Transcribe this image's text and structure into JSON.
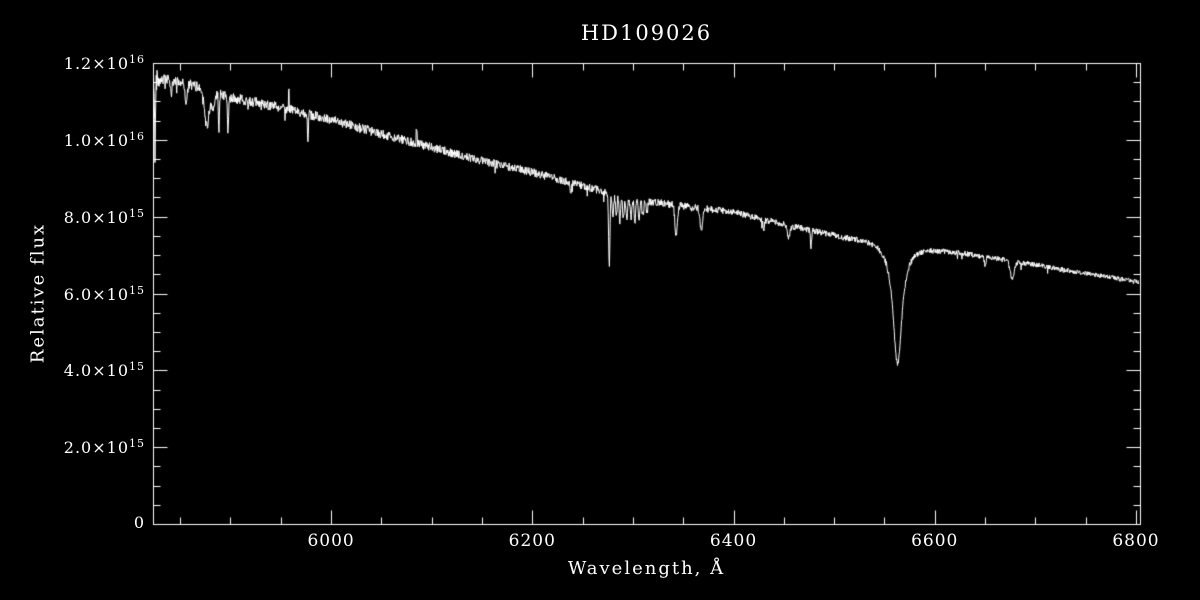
{
  "chart_data": {
    "type": "line",
    "kind": "astronomical-spectrum",
    "title": "HD109026",
    "colors": {
      "background": "#000000",
      "foreground": "#ffffff",
      "trace": "#ffffff"
    },
    "x_axis": {
      "label": "Wavelength, Å",
      "range": [
        5823,
        6804
      ],
      "major_ticks": [
        6000,
        6200,
        6400,
        6600,
        6800
      ],
      "tick_labels": [
        "6000",
        "6200",
        "6400",
        "6600",
        "6800"
      ],
      "minor_tick_step": 50
    },
    "y_axis": {
      "label": "Relative flux",
      "units": "1e15",
      "range_1e15": [
        0,
        12
      ],
      "major_ticks_1e15": [
        0,
        2,
        4,
        6,
        8,
        10,
        12
      ],
      "tick_labels": [
        "0",
        "2.0×10^15",
        "4.0×10^15",
        "6.0×10^15",
        "8.0×10^15",
        "1.0×10^16",
        "1.2×10^16"
      ],
      "minor_tick_step_1e15": 0.5
    },
    "continuum_anchors_wavelength_flux1e15": [
      [
        5823,
        11.62
      ],
      [
        5850,
        11.5
      ],
      [
        5880,
        11.3
      ],
      [
        5900,
        11.1
      ],
      [
        5950,
        10.85
      ],
      [
        6000,
        10.52
      ],
      [
        6050,
        10.15
      ],
      [
        6100,
        9.8
      ],
      [
        6150,
        9.45
      ],
      [
        6200,
        9.16
      ],
      [
        6250,
        8.8
      ],
      [
        6300,
        8.45
      ],
      [
        6350,
        8.28
      ],
      [
        6400,
        8.12
      ],
      [
        6450,
        7.8
      ],
      [
        6500,
        7.52
      ],
      [
        6550,
        7.38
      ],
      [
        6600,
        7.18
      ],
      [
        6650,
        6.95
      ],
      [
        6700,
        6.75
      ],
      [
        6750,
        6.52
      ],
      [
        6804,
        6.3
      ]
    ],
    "absorption_lines": [
      {
        "center": 5825.0,
        "depth_1e15": 2.05,
        "width_A": 0.6,
        "profile": "gauss"
      },
      {
        "center": 5841.0,
        "depth_1e15": 0.35,
        "width_A": 1.2,
        "profile": "gauss"
      },
      {
        "center": 5856.0,
        "depth_1e15": 0.5,
        "width_A": 1.5,
        "profile": "gauss"
      },
      {
        "center": 5876.5,
        "depth_1e15": 0.95,
        "width_A": 3.5,
        "profile": "gauss"
      },
      {
        "center": 5883.0,
        "depth_1e15": 0.5,
        "width_A": 2.5,
        "profile": "gauss"
      },
      {
        "center": 5888.5,
        "depth_1e15": 1.1,
        "width_A": 0.7,
        "profile": "gauss"
      },
      {
        "center": 5897.5,
        "depth_1e15": 1.05,
        "width_A": 0.7,
        "profile": "gauss"
      },
      {
        "center": 6238.0,
        "depth_1e15": 0.3,
        "width_A": 1.0,
        "profile": "gauss"
      },
      {
        "center": 6276.5,
        "depth_1e15": 2.0,
        "width_A": 0.9,
        "profile": "gauss"
      },
      {
        "center": 6280.0,
        "depth_1e15": 0.6,
        "width_A": 1.1,
        "profile": "gauss"
      },
      {
        "center": 6283.5,
        "depth_1e15": 0.55,
        "width_A": 1.1,
        "profile": "gauss"
      },
      {
        "center": 6287.0,
        "depth_1e15": 0.65,
        "width_A": 1.1,
        "profile": "gauss"
      },
      {
        "center": 6290.5,
        "depth_1e15": 0.55,
        "width_A": 1.1,
        "profile": "gauss"
      },
      {
        "center": 6294.0,
        "depth_1e15": 0.6,
        "width_A": 1.1,
        "profile": "gauss"
      },
      {
        "center": 6298.0,
        "depth_1e15": 0.5,
        "width_A": 1.1,
        "profile": "gauss"
      },
      {
        "center": 6302.0,
        "depth_1e15": 0.55,
        "width_A": 1.1,
        "profile": "gauss"
      },
      {
        "center": 6306.0,
        "depth_1e15": 0.45,
        "width_A": 1.1,
        "profile": "gauss"
      },
      {
        "center": 6310.0,
        "depth_1e15": 0.4,
        "width_A": 1.1,
        "profile": "gauss"
      },
      {
        "center": 6314.0,
        "depth_1e15": 0.3,
        "width_A": 1.1,
        "profile": "gauss"
      },
      {
        "center": 6343.0,
        "depth_1e15": 0.78,
        "width_A": 1.8,
        "profile": "gauss"
      },
      {
        "center": 6368.0,
        "depth_1e15": 0.63,
        "width_A": 1.8,
        "profile": "gauss"
      },
      {
        "center": 6430.0,
        "depth_1e15": 0.25,
        "width_A": 1.2,
        "profile": "gauss"
      },
      {
        "center": 6455.0,
        "depth_1e15": 0.3,
        "width_A": 2.0,
        "profile": "gauss"
      },
      {
        "center": 6477.0,
        "depth_1e15": 0.45,
        "width_A": 0.8,
        "profile": "gauss"
      },
      {
        "center": 6563.0,
        "depth_1e15": 3.15,
        "width_A": 5.5,
        "profile": "lorentz"
      },
      {
        "center": 6650.0,
        "depth_1e15": 0.2,
        "width_A": 1.2,
        "profile": "gauss"
      },
      {
        "center": 6677.0,
        "depth_1e15": 0.45,
        "width_A": 2.8,
        "profile": "gauss"
      }
    ],
    "noise_spikes": [
      {
        "center": 5958,
        "delta_1e15": 0.45
      },
      {
        "center": 5977,
        "delta_1e15": -0.6
      },
      {
        "center": 6085,
        "delta_1e15": 0.35
      }
    ],
    "noise": {
      "amp_1e15_at_blue_end": 0.14,
      "amp_1e15_at_red_end": 0.055,
      "blue_edge_boost_below_A": 5830,
      "blue_edge_boost_factor": 2.2
    }
  }
}
